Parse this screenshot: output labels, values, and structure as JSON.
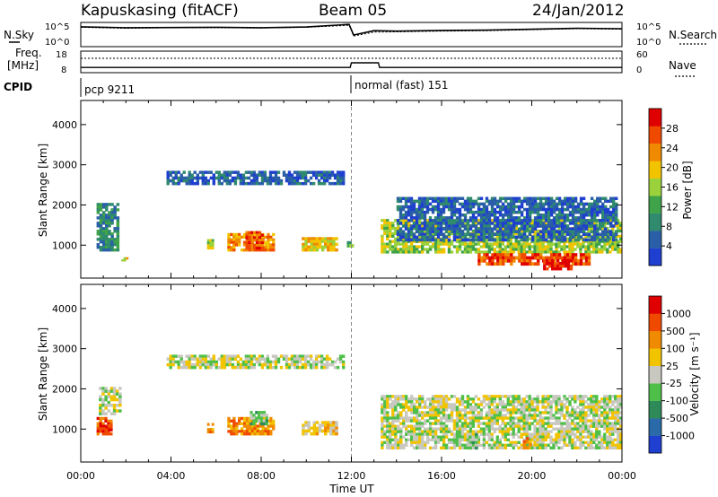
{
  "header": {
    "station": "Kapuskasing (fitACF)",
    "beam": "Beam 05",
    "date": "24/Jan/2012"
  },
  "left_labels": {
    "nsky": "N.Sky",
    "freq": "Freq.",
    "freq_unit": "[MHz]",
    "cpid": "CPID"
  },
  "right_labels": {
    "nsearch": "N.Search",
    "nave": "Nave"
  },
  "cpid_labels": [
    "pcp 9211",
    "normal (fast) 151"
  ],
  "colors": {
    "power_scale": [
      "#1f3fd0",
      "#2a5fa8",
      "#2f8a6e",
      "#3fa34a",
      "#9bd23b",
      "#f2c400",
      "#f08a00",
      "#f04a00",
      "#e00000"
    ],
    "velocity_scale": [
      "#1f3fd0",
      "#2a6aa8",
      "#2f8a5a",
      "#4ec04a",
      "#c8c8c0",
      "#f2c400",
      "#f08a00",
      "#f04a00",
      "#e00000"
    ]
  },
  "chart_data": [
    {
      "type": "line",
      "name": "noise-panel",
      "y_ticks": [
        "10^5",
        "10^0"
      ],
      "y_ticks_right": [
        "10^5",
        "10^0"
      ],
      "x": [
        0,
        2,
        4,
        6,
        8,
        10,
        11.9,
        12.1,
        13,
        14,
        16,
        18,
        20,
        22,
        24
      ],
      "series": [
        {
          "name": "N.Sky",
          "values": [
            4.1,
            3.9,
            3.95,
            4.0,
            3.9,
            4.05,
            4.6,
            2.4,
            3.3,
            3.2,
            3.35,
            3.4,
            3.6,
            3.8,
            3.7
          ]
        },
        {
          "name": "N.Search",
          "values": [
            4.0,
            3.8,
            3.9,
            3.9,
            3.85,
            4.0,
            4.4,
            2.2,
            3.0,
            3.05,
            3.2,
            3.3,
            3.5,
            3.7,
            3.6
          ]
        }
      ],
      "ylim": [
        0,
        5
      ]
    },
    {
      "type": "line",
      "name": "freq-nave-panel",
      "y_ticks_left": [
        "18",
        "8"
      ],
      "y_ticks_right": [
        "60",
        "0"
      ],
      "ylim_left": [
        8,
        18
      ],
      "ylim_right": [
        0,
        60
      ],
      "x": [
        0,
        11.95,
        12.0,
        13.2,
        13.25,
        24
      ],
      "series": [
        {
          "name": "Freq.",
          "values": [
            10.4,
            10.4,
            12.6,
            12.6,
            10.4,
            10.4
          ]
        },
        {
          "name": "Nave",
          "values": [
            40,
            40,
            40,
            40,
            40,
            40
          ]
        }
      ]
    },
    {
      "type": "heatmap",
      "name": "power-panel",
      "ylabel": "Slant Range [km]",
      "y_ticks": [
        "4000",
        "3000",
        "2000",
        "1000"
      ],
      "ylim": [
        180,
        4600
      ],
      "xlim": [
        0,
        24
      ],
      "colorbar_label": "Power [dB]",
      "colorbar_ticks": [
        "28",
        "24",
        "20",
        "16",
        "12",
        "8",
        "4"
      ],
      "regions": [
        {
          "x": [
            0.7,
            1.7
          ],
          "y": [
            850,
            2050
          ],
          "level": 2
        },
        {
          "x": [
            1.8,
            2.1
          ],
          "y": [
            600,
            700
          ],
          "level": 5
        },
        {
          "x": [
            3.8,
            11.7
          ],
          "y": [
            2500,
            2850
          ],
          "level": 1
        },
        {
          "x": [
            5.6,
            5.9
          ],
          "y": [
            900,
            1150
          ],
          "level": 4
        },
        {
          "x": [
            6.5,
            8.6
          ],
          "y": [
            850,
            1300
          ],
          "level": 6
        },
        {
          "x": [
            7.3,
            8.1
          ],
          "y": [
            900,
            1350
          ],
          "level": 7
        },
        {
          "x": [
            9.8,
            11.4
          ],
          "y": [
            850,
            1200
          ],
          "level": 5
        },
        {
          "x": [
            11.8,
            12.1
          ],
          "y": [
            950,
            1100
          ],
          "level": 3
        },
        {
          "x": [
            13.3,
            24
          ],
          "y": [
            800,
            1650
          ],
          "level": 4
        },
        {
          "x": [
            14.0,
            23.8
          ],
          "y": [
            1100,
            2200
          ],
          "level": 1
        },
        {
          "x": [
            17.6,
            22.6
          ],
          "y": [
            500,
            800
          ],
          "level": 7
        },
        {
          "x": [
            20.5,
            21.8
          ],
          "y": [
            380,
            650
          ],
          "level": 8
        }
      ]
    },
    {
      "type": "heatmap",
      "name": "velocity-panel",
      "ylabel": "Slant Range [km]",
      "xlabel": "Time UT",
      "y_ticks": [
        "4000",
        "3000",
        "2000",
        "1000"
      ],
      "x_ticks": [
        "00:00",
        "04:00",
        "08:00",
        "12:00",
        "16:00",
        "20:00",
        "00:00"
      ],
      "ylim": [
        180,
        4600
      ],
      "xlim": [
        0,
        24
      ],
      "colorbar_label": "Velocity [m s⁻¹]",
      "colorbar_ticks": [
        "1000",
        "500",
        "100",
        "25",
        "-25",
        "-100",
        "-500",
        "-1000"
      ],
      "regions": [
        {
          "x": [
            0.7,
            1.4
          ],
          "y": [
            850,
            1300
          ],
          "level": 7
        },
        {
          "x": [
            0.8,
            1.8
          ],
          "y": [
            1350,
            2050
          ],
          "level": 4
        },
        {
          "x": [
            1.1,
            1.4
          ],
          "y": [
            950,
            1150
          ],
          "level": 8
        },
        {
          "x": [
            3.8,
            11.7
          ],
          "y": [
            2500,
            2850
          ],
          "level": 4
        },
        {
          "x": [
            5.6,
            5.9
          ],
          "y": [
            900,
            1150
          ],
          "level": 6
        },
        {
          "x": [
            6.5,
            8.6
          ],
          "y": [
            850,
            1300
          ],
          "level": 6
        },
        {
          "x": [
            7.5,
            8.3
          ],
          "y": [
            1100,
            1450
          ],
          "level": 3
        },
        {
          "x": [
            9.8,
            11.4
          ],
          "y": [
            850,
            1200
          ],
          "level": 5
        },
        {
          "x": [
            13.3,
            24
          ],
          "y": [
            500,
            1850
          ],
          "level": 4
        },
        {
          "x": [
            17.2,
            17.6
          ],
          "y": [
            500,
            900
          ],
          "level": 3
        },
        {
          "x": [
            19.6,
            20.0
          ],
          "y": [
            500,
            800
          ],
          "level": 6
        }
      ]
    }
  ]
}
